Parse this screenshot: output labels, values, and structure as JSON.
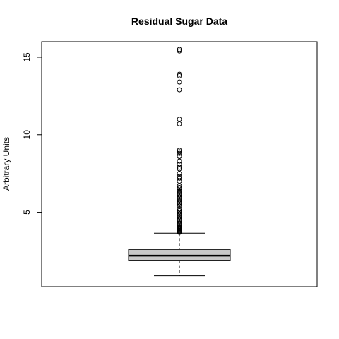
{
  "chart_data": {
    "type": "boxplot",
    "title": "Residual Sugar Data",
    "xlabel": "",
    "ylabel": "Arbitrary Units",
    "ylim": [
      0.2,
      16.0
    ],
    "yticks": [
      5,
      10,
      15
    ],
    "grid": false,
    "legend": "none",
    "box": {
      "whisker_low": 0.9,
      "q1": 1.9,
      "median": 2.2,
      "q3": 2.6,
      "whisker_high": 3.65,
      "fill": "#c8c8c8"
    },
    "outliers": [
      3.7,
      3.75,
      3.8,
      3.85,
      3.9,
      3.95,
      4.0,
      4.05,
      4.1,
      4.2,
      4.25,
      4.3,
      4.4,
      4.5,
      4.6,
      4.7,
      4.8,
      4.9,
      5.0,
      5.1,
      5.2,
      5.4,
      5.5,
      5.6,
      5.7,
      5.8,
      5.9,
      6.0,
      6.1,
      6.2,
      6.3,
      6.4,
      6.55,
      6.6,
      6.7,
      7.0,
      7.2,
      7.3,
      7.5,
      7.8,
      7.9,
      8.1,
      8.3,
      8.6,
      8.8,
      8.9,
      9.0,
      10.7,
      11.0,
      12.9,
      13.4,
      13.8,
      13.9,
      15.4,
      15.5
    ]
  }
}
